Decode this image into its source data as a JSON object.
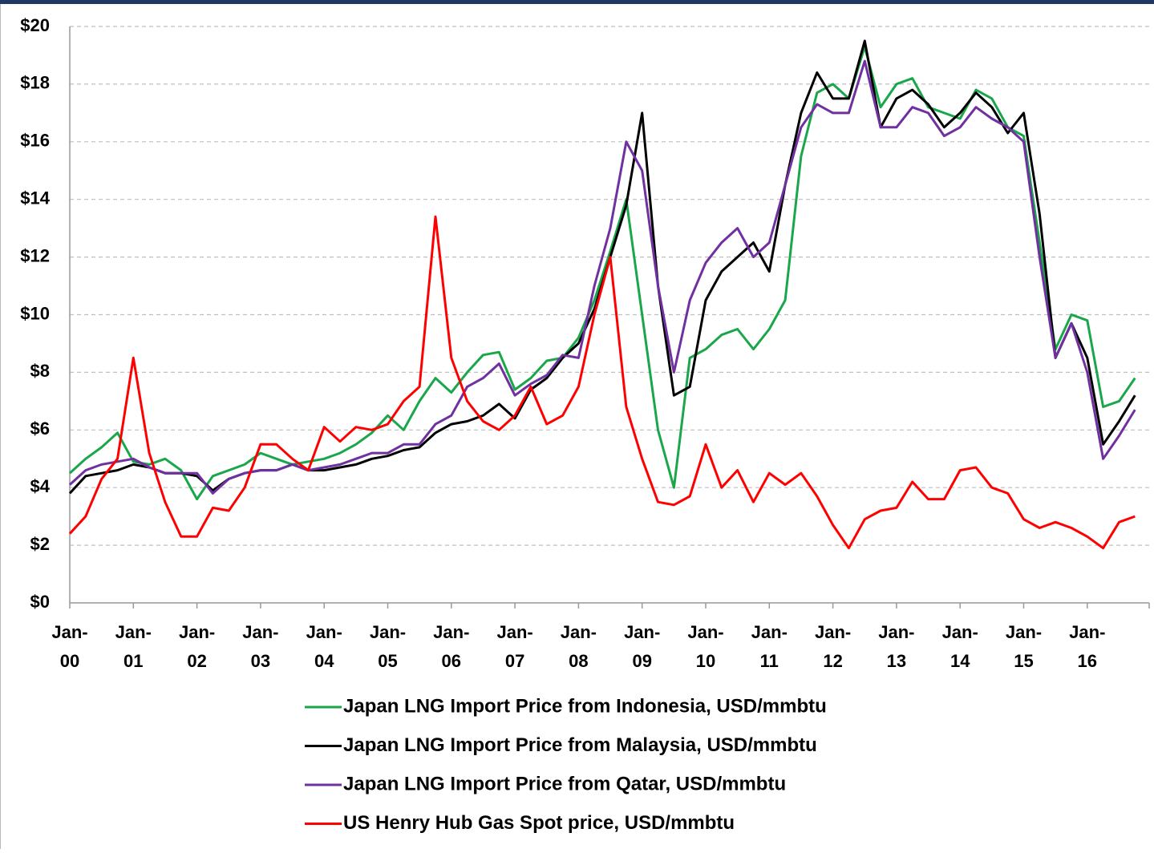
{
  "chart_data": {
    "type": "line",
    "categories": [
      "Jan-00",
      null,
      null,
      null,
      "Jan-01",
      null,
      null,
      null,
      "Jan-02",
      null,
      null,
      null,
      "Jan-03",
      null,
      null,
      null,
      "Jan-04",
      null,
      null,
      null,
      "Jan-05",
      null,
      null,
      null,
      "Jan-06",
      null,
      null,
      null,
      "Jan-07",
      null,
      null,
      null,
      "Jan-08",
      null,
      null,
      null,
      "Jan-09",
      null,
      null,
      null,
      "Jan-10",
      null,
      null,
      null,
      "Jan-11",
      null,
      null,
      null,
      "Jan-12",
      null,
      null,
      null,
      "Jan-13",
      null,
      null,
      null,
      "Jan-14",
      null,
      null,
      null,
      "Jan-15",
      null,
      null,
      null,
      "Jan-16",
      null,
      null,
      null
    ],
    "series": [
      {
        "name": "Japan LNG Import Price from Indonesia, USD/mmbtu",
        "color": "#1aa64a",
        "values": [
          4.5,
          5.0,
          5.4,
          5.9,
          4.9,
          4.8,
          5.0,
          4.6,
          3.6,
          4.4,
          4.6,
          4.8,
          5.2,
          5.0,
          4.8,
          4.9,
          5.0,
          5.2,
          5.5,
          5.9,
          6.5,
          6.0,
          7.0,
          7.8,
          7.3,
          8.0,
          8.6,
          8.7,
          7.4,
          7.8,
          8.4,
          8.5,
          9.2,
          10.5,
          12.2,
          14.0,
          10.0,
          6.0,
          4.0,
          8.5,
          8.8,
          9.3,
          9.5,
          8.8,
          9.5,
          10.5,
          15.5,
          17.7,
          18.0,
          17.5,
          19.3,
          17.2,
          18.0,
          18.2,
          17.2,
          17.0,
          16.8,
          17.8,
          17.5,
          16.5,
          16.2,
          12.5,
          8.8,
          10.0,
          9.8,
          6.8,
          7.0,
          7.8
        ]
      },
      {
        "name": "Japan LNG Import Price from Malaysia, USD/mmbtu",
        "color": "#000000",
        "values": [
          3.8,
          4.4,
          4.5,
          4.6,
          4.8,
          4.7,
          4.5,
          4.5,
          4.4,
          3.9,
          4.3,
          4.5,
          4.6,
          4.6,
          4.8,
          4.6,
          4.6,
          4.7,
          4.8,
          5.0,
          5.1,
          5.3,
          5.4,
          5.9,
          6.2,
          6.3,
          6.5,
          6.9,
          6.4,
          7.4,
          7.8,
          8.5,
          9.0,
          10.2,
          12.0,
          13.8,
          17.0,
          11.0,
          7.2,
          7.5,
          10.5,
          11.5,
          12.0,
          12.5,
          11.5,
          14.5,
          17.0,
          18.4,
          17.5,
          17.5,
          19.5,
          16.5,
          17.5,
          17.8,
          17.3,
          16.5,
          17.0,
          17.7,
          17.2,
          16.3,
          17.0,
          13.5,
          8.5,
          9.7,
          8.5,
          5.5,
          6.3,
          7.2
        ]
      },
      {
        "name": "Japan LNG Import Price from Qatar, USD/mmbtu",
        "color": "#7030a0",
        "values": [
          4.1,
          4.6,
          4.8,
          4.9,
          5.0,
          4.7,
          4.5,
          4.5,
          4.5,
          3.8,
          4.3,
          4.5,
          4.6,
          4.6,
          4.8,
          4.6,
          4.7,
          4.8,
          5.0,
          5.2,
          5.2,
          5.5,
          5.5,
          6.2,
          6.5,
          7.5,
          7.8,
          8.3,
          7.2,
          7.6,
          7.9,
          8.6,
          8.5,
          11.0,
          13.0,
          16.0,
          15.0,
          11.0,
          8.0,
          10.5,
          11.8,
          12.5,
          13.0,
          12.0,
          12.5,
          14.5,
          16.5,
          17.3,
          17.0,
          17.0,
          18.8,
          16.5,
          16.5,
          17.2,
          17.0,
          16.2,
          16.5,
          17.2,
          16.8,
          16.5,
          16.0,
          12.0,
          8.5,
          9.7,
          8.0,
          5.0,
          5.8,
          6.7
        ]
      },
      {
        "name": "US Henry Hub Gas Spot price, USD/mmbtu",
        "color": "#ff0000",
        "values": [
          2.4,
          3.0,
          4.3,
          5.0,
          8.5,
          5.2,
          3.5,
          2.3,
          2.3,
          3.3,
          3.2,
          4.0,
          5.5,
          5.5,
          5.0,
          4.6,
          6.1,
          5.6,
          6.1,
          6.0,
          6.2,
          7.0,
          7.5,
          13.4,
          8.5,
          7.0,
          6.3,
          6.0,
          6.5,
          7.5,
          6.2,
          6.5,
          7.5,
          10.0,
          12.0,
          6.8,
          5.0,
          3.5,
          3.4,
          3.7,
          5.5,
          4.0,
          4.6,
          3.5,
          4.5,
          4.1,
          4.5,
          3.7,
          2.7,
          1.9,
          2.9,
          3.2,
          3.3,
          4.2,
          3.6,
          3.6,
          4.6,
          4.7,
          4.0,
          3.8,
          2.9,
          2.6,
          2.8,
          2.6,
          2.3,
          1.9,
          2.8,
          3.0
        ]
      }
    ],
    "ylim": [
      0,
      20
    ],
    "yticks": [
      {
        "value": 0,
        "label": "$0"
      },
      {
        "value": 2,
        "label": "$2"
      },
      {
        "value": 4,
        "label": "$4"
      },
      {
        "value": 6,
        "label": "$6"
      },
      {
        "value": 8,
        "label": "$8"
      },
      {
        "value": 10,
        "label": "$10"
      },
      {
        "value": 12,
        "label": "$12"
      },
      {
        "value": 14,
        "label": "$14"
      },
      {
        "value": 16,
        "label": "$16"
      },
      {
        "value": 18,
        "label": "$18"
      },
      {
        "value": 20,
        "label": "$20"
      }
    ],
    "grid": true,
    "legend": "bottom"
  }
}
